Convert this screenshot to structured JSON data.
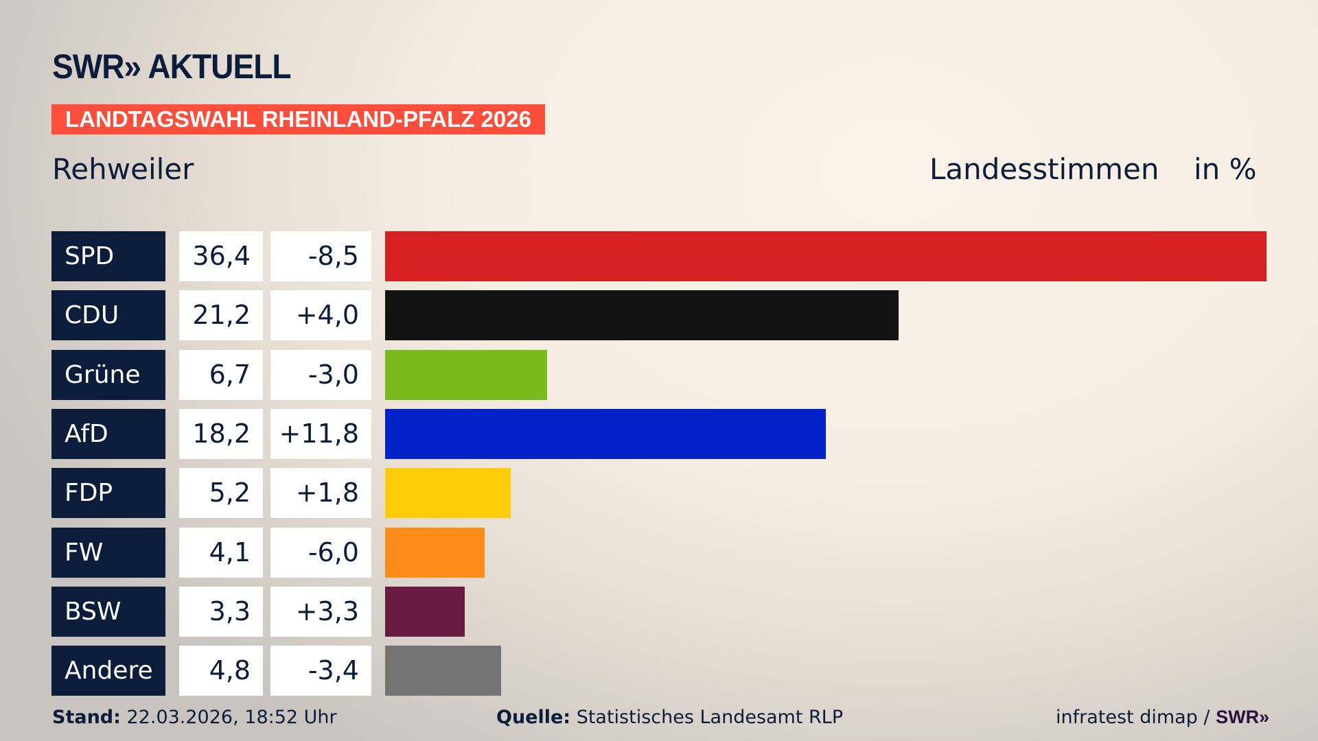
{
  "header": {
    "logo": "SWR» AKTUELL",
    "badge": "LANDTAGSWAHL RHEINLAND-PFALZ 2026",
    "place": "Rehweiler",
    "measure": "Landesstimmen",
    "unit": "in %"
  },
  "chart_data": {
    "type": "bar",
    "orientation": "horizontal",
    "value_unit": "%",
    "categories": [
      "SPD",
      "CDU",
      "Grüne",
      "AfD",
      "FDP",
      "FW",
      "BSW",
      "Andere"
    ],
    "values": [
      36.4,
      21.2,
      6.7,
      18.2,
      5.2,
      4.1,
      3.3,
      4.8
    ],
    "value_labels": [
      "36,4",
      "21,2",
      "6,7",
      "18,2",
      "5,2",
      "4,1",
      "3,3",
      "4,8"
    ],
    "diff_labels": [
      "-8,5",
      "+4,0",
      "-3,0",
      "+11,8",
      "+1,8",
      "-6,0",
      "+3,3",
      "-3,4"
    ],
    "colors": [
      "#d62022",
      "#131313",
      "#7aba1c",
      "#0022c8",
      "#ffcc0a",
      "#ff8c18",
      "#691a40",
      "#747474"
    ]
  },
  "footer": {
    "stand_label": "Stand:",
    "stand_value": " 22.03.2026, 18:52 Uhr",
    "source_label": "Quelle:",
    "source_value": " Statistisches Landesamt RLP",
    "credit": "infratest dimap / ",
    "credit_logo": "SWR»"
  }
}
